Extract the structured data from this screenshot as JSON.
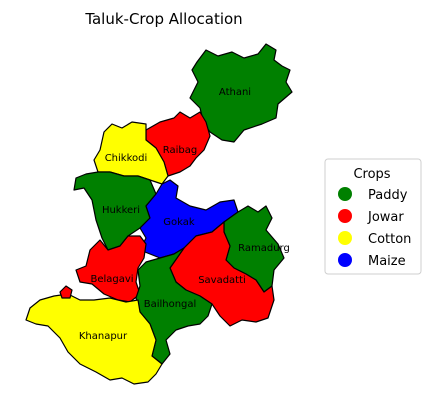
{
  "map": {
    "title": "Taluk-Crop Allocation",
    "colors": {
      "Paddy": "#008000",
      "Jowar": "#ff0000",
      "Cotton": "#ffff00",
      "Maize": "#0000ff"
    },
    "regions": [
      {
        "id": "athani",
        "label": "Athani",
        "crop": "Paddy"
      },
      {
        "id": "raibag",
        "label": "Raibag",
        "crop": "Jowar"
      },
      {
        "id": "chikkodi",
        "label": "Chikkodi",
        "crop": "Cotton"
      },
      {
        "id": "hukkeri",
        "label": "Hukkeri",
        "crop": "Paddy"
      },
      {
        "id": "gokak",
        "label": "Gokak",
        "crop": "Maize"
      },
      {
        "id": "ramadurg",
        "label": "Ramadurg",
        "crop": "Paddy"
      },
      {
        "id": "belagavi",
        "label": "Belagavi",
        "crop": "Jowar"
      },
      {
        "id": "savadatti",
        "label": "Savadatti",
        "crop": "Jowar"
      },
      {
        "id": "bailhongal",
        "label": "Bailhongal",
        "crop": "Paddy"
      },
      {
        "id": "khanapur",
        "label": "Khanapur",
        "crop": "Cotton"
      }
    ]
  },
  "legend": {
    "title": "Crops",
    "items": [
      {
        "label": "Paddy",
        "color": "#008000"
      },
      {
        "label": "Jowar",
        "color": "#ff0000"
      },
      {
        "label": "Cotton",
        "color": "#ffff00"
      },
      {
        "label": "Maize",
        "color": "#0000ff"
      }
    ]
  }
}
